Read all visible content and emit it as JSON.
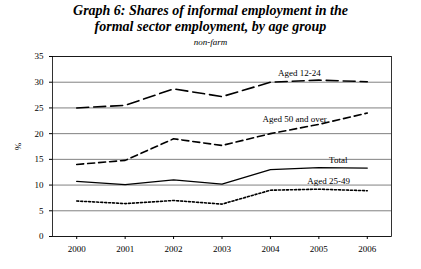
{
  "chart_data": {
    "type": "line",
    "title": "Graph 6: Shares of informal employment in the formal sector employment, by age group",
    "subtitle": "non-farm",
    "y_label": "%",
    "x": [
      2000,
      2001,
      2002,
      2003,
      2004,
      2005,
      2006
    ],
    "xlim": [
      1999.5,
      2006.5
    ],
    "xticks": [
      2000,
      2001,
      2002,
      2003,
      2004,
      2005,
      2006
    ],
    "ylim": [
      0,
      35
    ],
    "yticks": [
      0,
      5,
      10,
      15,
      20,
      25,
      30,
      35
    ],
    "grid": true,
    "series": [
      {
        "name": "Aged 12-24",
        "color": "#000000",
        "line_style": "long_dash",
        "values": [
          25,
          25.5,
          28.7,
          27.2,
          30,
          30.4,
          30.1
        ]
      },
      {
        "name": "Aged 50 and over",
        "color": "#000000",
        "line_style": "dashed",
        "values": [
          14,
          14.8,
          19,
          17.7,
          20,
          21.8,
          24
        ]
      },
      {
        "name": "Total",
        "color": "#000000",
        "line_style": "solid",
        "values": [
          10.7,
          10.1,
          11,
          10.2,
          13,
          13.4,
          13.3
        ]
      },
      {
        "name": "Aged 25-49",
        "color": "#000000",
        "line_style": "dotted",
        "values": [
          6.9,
          6.4,
          7,
          6.3,
          9,
          9.2,
          8.9
        ]
      }
    ]
  }
}
